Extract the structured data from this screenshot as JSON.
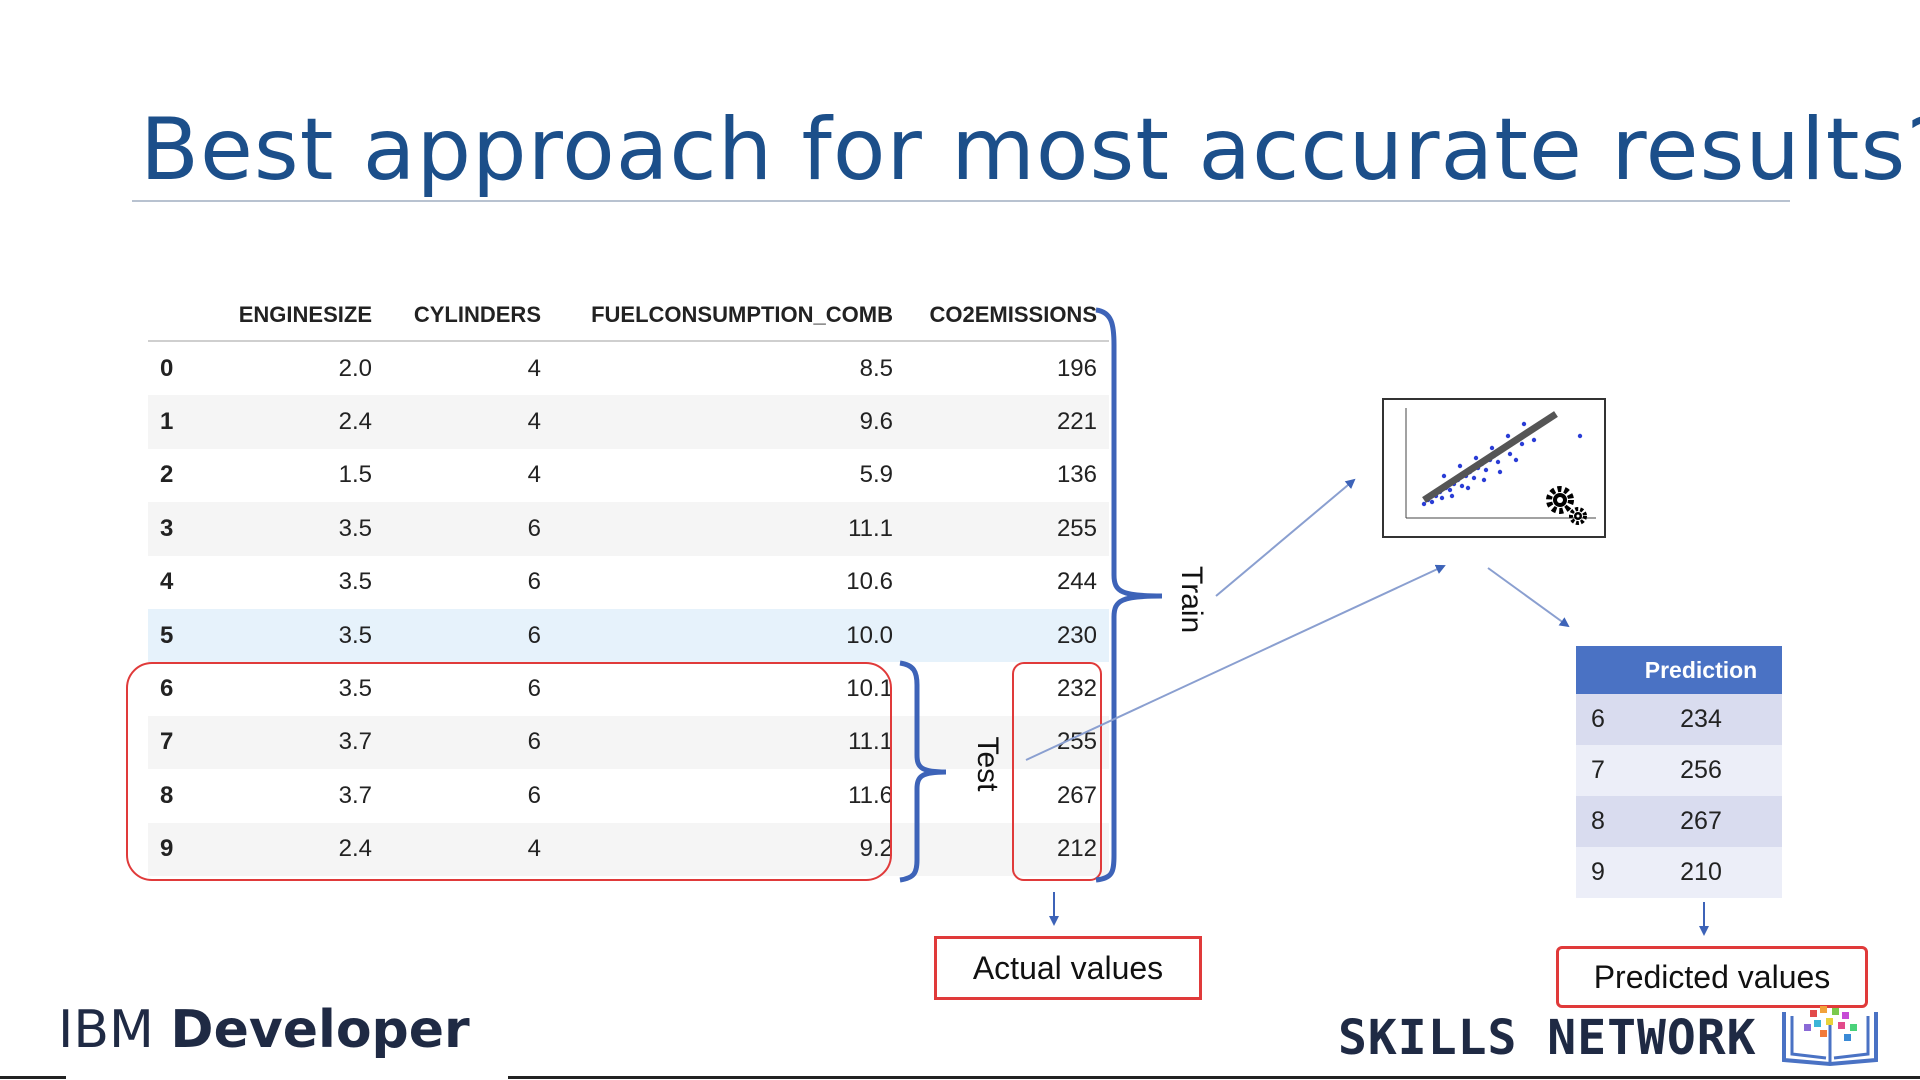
{
  "title": "Best approach for most accurate results?",
  "table": {
    "columns": [
      "",
      "ENGINESIZE",
      "CYLINDERS",
      "FUELCONSUMPTION_COMB",
      "CO2EMISSIONS"
    ],
    "rows": [
      [
        "0",
        "2.0",
        "4",
        "8.5",
        "196"
      ],
      [
        "1",
        "2.4",
        "4",
        "9.6",
        "221"
      ],
      [
        "2",
        "1.5",
        "4",
        "5.9",
        "136"
      ],
      [
        "3",
        "3.5",
        "6",
        "11.1",
        "255"
      ],
      [
        "4",
        "3.5",
        "6",
        "10.6",
        "244"
      ],
      [
        "5",
        "3.5",
        "6",
        "10.0",
        "230"
      ],
      [
        "6",
        "3.5",
        "6",
        "10.1",
        "232"
      ],
      [
        "7",
        "3.7",
        "6",
        "11.1",
        "255"
      ],
      [
        "8",
        "3.7",
        "6",
        "11.6",
        "267"
      ],
      [
        "9",
        "2.4",
        "4",
        "9.2",
        "212"
      ]
    ]
  },
  "labels": {
    "train": "Train",
    "test": "Test",
    "actual": "Actual values",
    "predicted": "Predicted values"
  },
  "prediction": {
    "header": "Prediction",
    "rows": [
      [
        "6",
        "234"
      ],
      [
        "7",
        "256"
      ],
      [
        "8",
        "267"
      ],
      [
        "9",
        "210"
      ]
    ]
  },
  "footer": {
    "ibm_light": "IBM ",
    "ibm_bold": "Developer",
    "skills": "SKILLS NETWORK"
  },
  "colors": {
    "title": "#1c4f8a",
    "bracket": "#3d63b8",
    "highlight_box": "#e03a3a",
    "pred_header": "#4a72c4"
  }
}
